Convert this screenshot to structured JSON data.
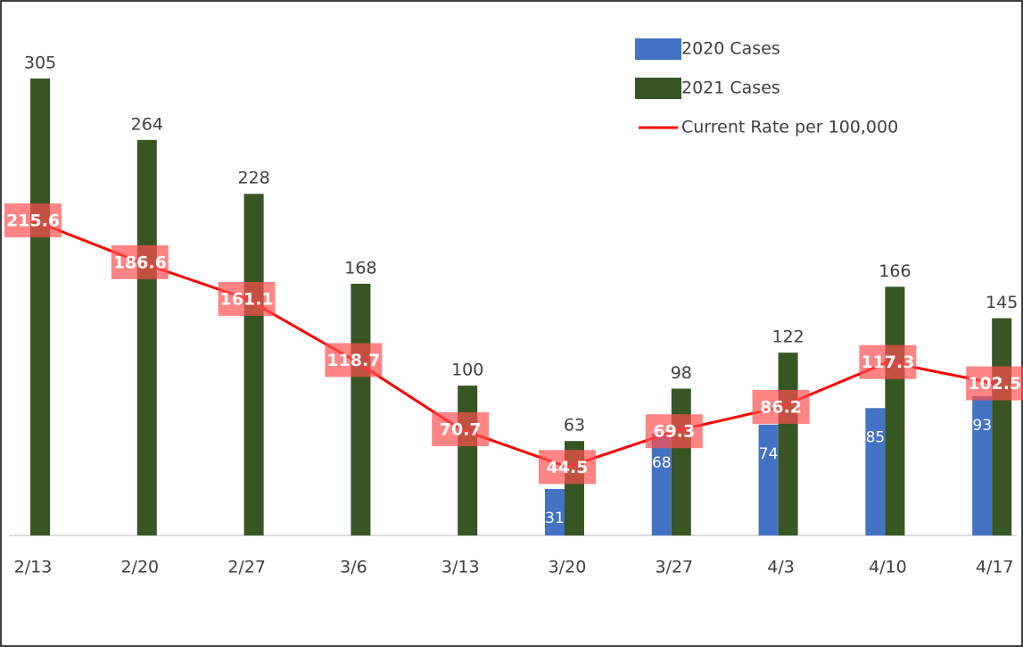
{
  "chart_data": {
    "type": "bar-line",
    "categories": [
      "2/13",
      "2/20",
      "2/27",
      "3/6",
      "3/13",
      "3/20",
      "3/27",
      "4/3",
      "4/10",
      "4/17"
    ],
    "series": [
      {
        "name": "2020 Cases",
        "color": "#4472c4",
        "type": "bar",
        "values": [
          null,
          null,
          null,
          null,
          null,
          31,
          68,
          74,
          85,
          93
        ]
      },
      {
        "name": "2021 Cases",
        "color": "#375623",
        "type": "bar",
        "values": [
          305,
          264,
          228,
          168,
          100,
          63,
          98,
          122,
          166,
          145
        ]
      },
      {
        "name": "Current Rate per 100,000",
        "color": "#ff0000",
        "type": "line",
        "axis": "y2",
        "values": [
          215.6,
          186.6,
          161.1,
          118.7,
          70.7,
          44.5,
          69.3,
          86.2,
          117.3,
          102.5
        ]
      }
    ],
    "ylim": [
      0,
      330
    ],
    "y2lim": [
      -3,
      340
    ],
    "legend": "top-right"
  }
}
